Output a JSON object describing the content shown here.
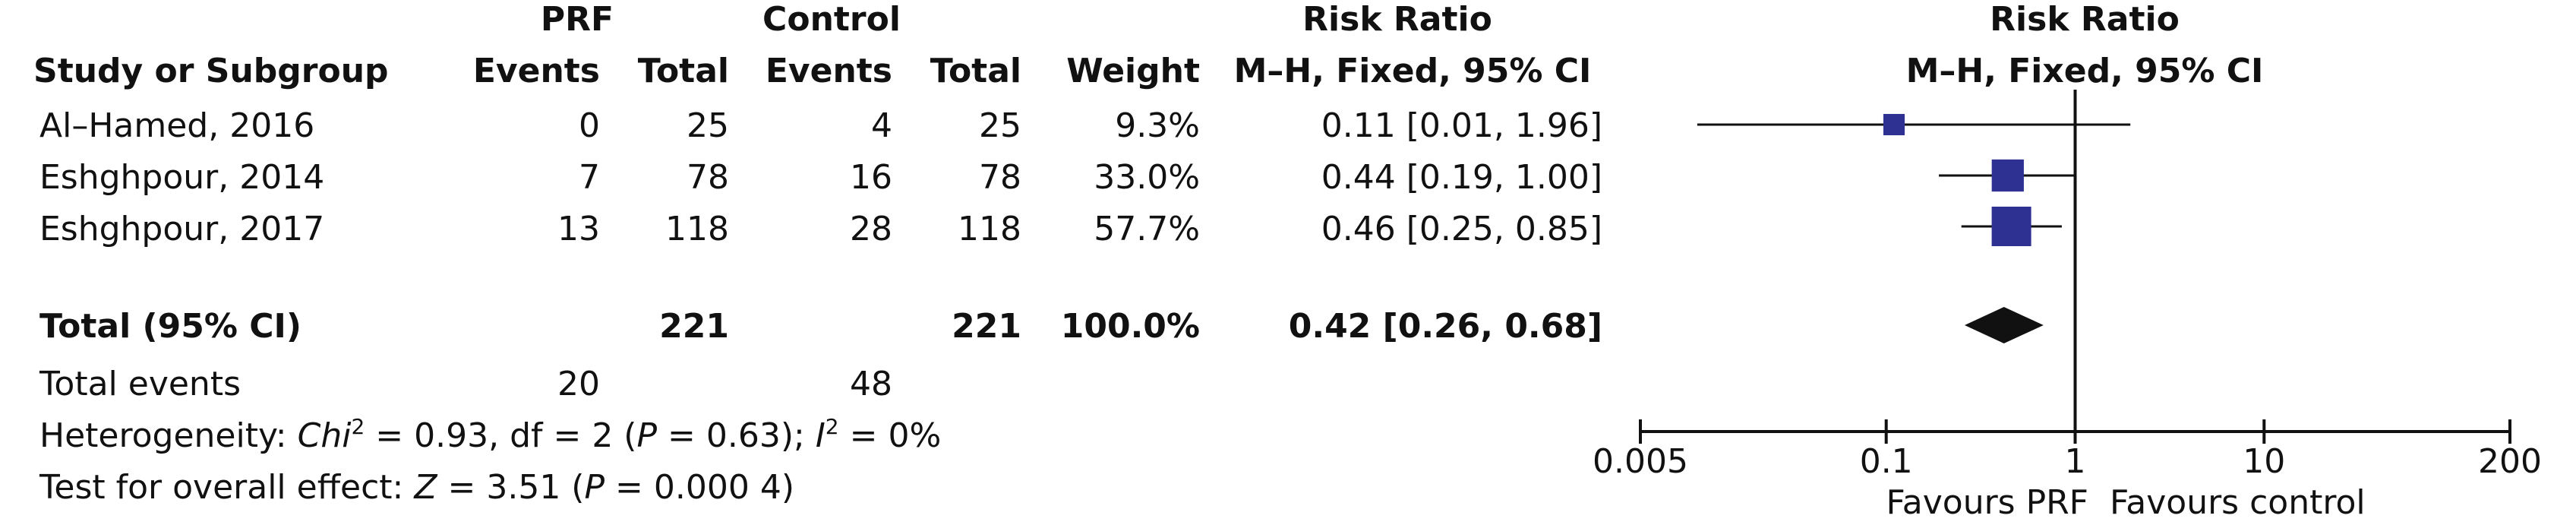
{
  "headers": {
    "group1": "PRF",
    "group2": "Control",
    "study": "Study or Subgroup",
    "events": "Events",
    "total": "Total",
    "weight": "Weight",
    "effect_title": "Risk Ratio",
    "effect_method": "M–H, Fixed, 95% CI",
    "plot_title": "Risk Ratio",
    "plot_method": "M–H, Fixed, 95% CI"
  },
  "studies": [
    {
      "name": "Al–Hamed, 2016",
      "e1": "0",
      "n1": "25",
      "e2": "4",
      "n2": "25",
      "weight": "9.3%",
      "ci_text": "0.11 [0.01, 1.96]"
    },
    {
      "name": "Eshghpour, 2014",
      "e1": "7",
      "n1": "78",
      "e2": "16",
      "n2": "78",
      "weight": "33.0%",
      "ci_text": "0.44 [0.19, 1.00]"
    },
    {
      "name": "Eshghpour, 2017",
      "e1": "13",
      "n1": "118",
      "e2": "28",
      "n2": "118",
      "weight": "57.7%",
      "ci_text": "0.46 [0.25, 0.85]"
    }
  ],
  "total": {
    "label": "Total (95% CI)",
    "n1": "221",
    "n2": "221",
    "weight": "100.0%",
    "ci_text": "0.42 [0.26, 0.68]"
  },
  "total_events": {
    "label": "Total events",
    "e1": "20",
    "e2": "48"
  },
  "heterogeneity": {
    "prefix": "Heterogeneity: ",
    "chi": "Chi",
    "chi_rest": " = 0.93, df = 2 (",
    "p": "P",
    "p_rest": " = 0.63); ",
    "i": "I",
    "i_rest": " = 0%"
  },
  "overall": {
    "prefix": "Test for overall effect: ",
    "z": "Z",
    "z_rest": " = 3.51 (",
    "p": "P",
    "p_rest": " = 0.000 4)"
  },
  "favours": {
    "left": "Favours PRF",
    "right": "Favours control"
  },
  "colors": {
    "square": "#2e3192",
    "diamond": "#111111",
    "line": "#111111"
  },
  "chart_data": {
    "type": "forest",
    "scale": "log",
    "xlim": [
      0.005,
      200
    ],
    "ticks": [
      {
        "value": 0.005,
        "label": "0.005"
      },
      {
        "value": 0.1,
        "label": "0.1"
      },
      {
        "value": 1,
        "label": "1"
      },
      {
        "value": 10,
        "label": "10"
      },
      {
        "value": 200,
        "label": "200"
      }
    ],
    "null_value": 1,
    "studies": [
      {
        "name": "Al–Hamed, 2016",
        "rr": 0.11,
        "lo": 0.01,
        "hi": 1.96,
        "weight": 9.3
      },
      {
        "name": "Eshghpour, 2014",
        "rr": 0.44,
        "lo": 0.19,
        "hi": 1.0,
        "weight": 33.0
      },
      {
        "name": "Eshghpour, 2017",
        "rr": 0.46,
        "lo": 0.25,
        "hi": 0.85,
        "weight": 57.7
      }
    ],
    "pooled": {
      "rr": 0.42,
      "lo": 0.26,
      "hi": 0.68
    }
  }
}
